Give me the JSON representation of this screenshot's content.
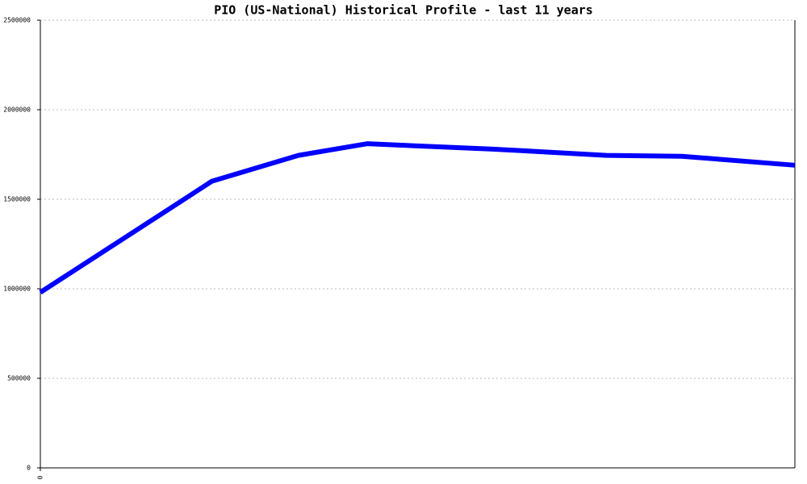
{
  "chart_data": {
    "type": "line",
    "title": "PIO (US-National) Historical Profile - last 11 years",
    "x": [
      0,
      1.76,
      2.27,
      3.42,
      4.33,
      6.0,
      7.5,
      8.5,
      10
    ],
    "series": [
      {
        "name": "PIO",
        "color": "#0000ff",
        "values": [
          980000,
          1460000,
          1600000,
          1745000,
          1810000,
          1780000,
          1745000,
          1740000,
          1690000
        ]
      }
    ],
    "xlim": [
      0,
      10
    ],
    "xticks": [
      0
    ],
    "ylim": [
      0,
      2500000
    ],
    "yticks": [
      0,
      500000,
      1000000,
      1500000,
      2000000,
      2500000
    ],
    "grid": true
  }
}
